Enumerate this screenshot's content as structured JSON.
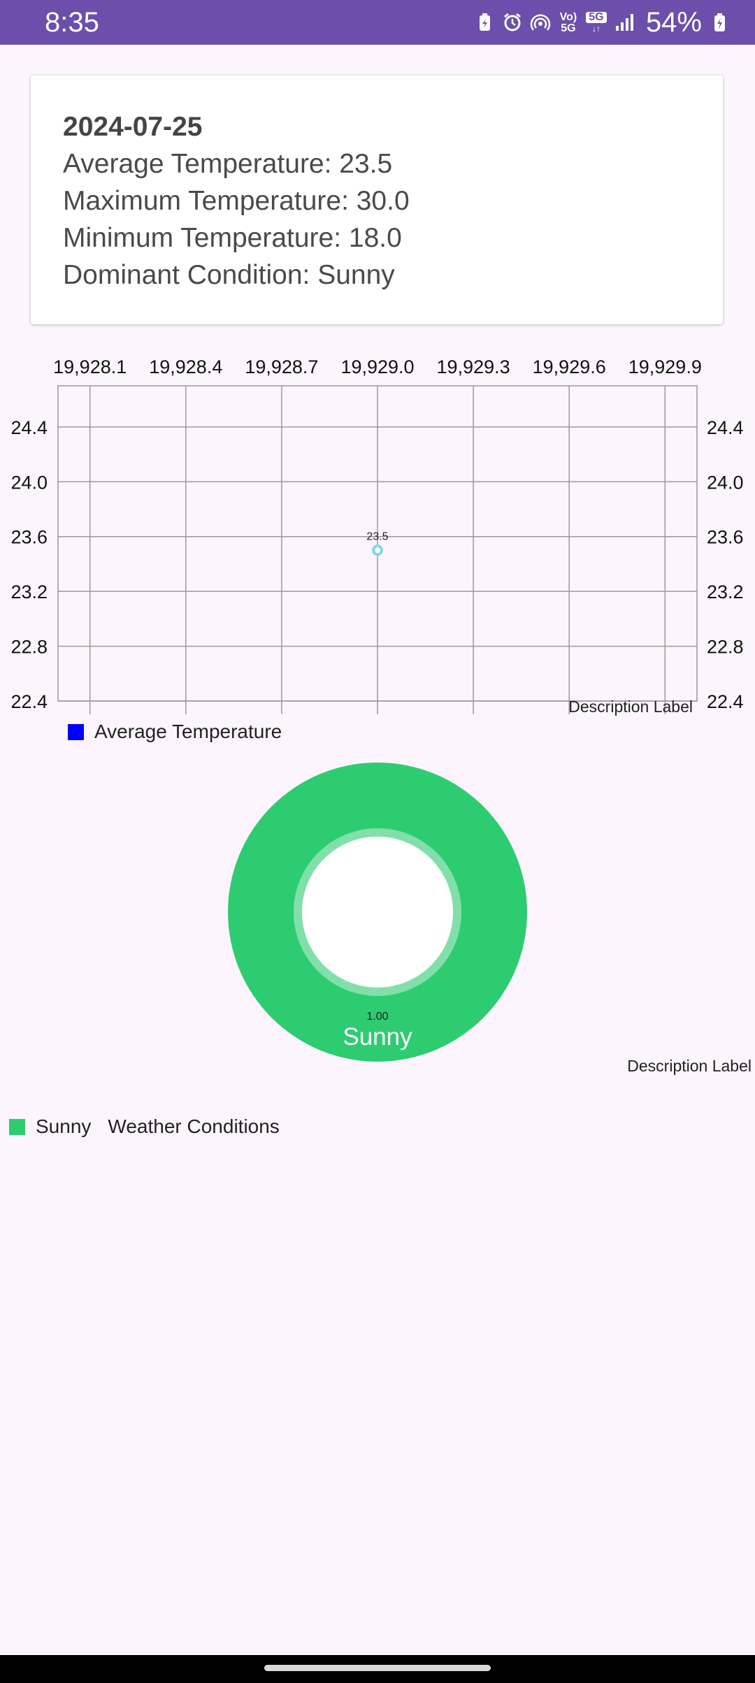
{
  "status_bar": {
    "time": "8:35",
    "battery": "54%",
    "network_top": "Vo)",
    "network_bottom": "5G",
    "badge_5g": "5G",
    "icons": [
      "battery-saver-icon",
      "alarm-icon",
      "hotspot-icon",
      "volte-icon",
      "5g-icon",
      "signal-icon",
      "battery-charging-icon"
    ]
  },
  "summary": {
    "date": "2024-07-25",
    "average": "Average Temperature: 23.5",
    "maximum": "Maximum Temperature: 30.0",
    "minimum": "Minimum Temperature: 18.0",
    "condition": "Dominant Condition: Sunny"
  },
  "chart_data": [
    {
      "type": "line",
      "title": "",
      "x_tick_labels": [
        "19,928.1",
        "19,928.4",
        "19,928.7",
        "19,929.0",
        "19,929.3",
        "19,929.6",
        "19,929.9"
      ],
      "x_ticks": [
        19928.1,
        19928.4,
        19928.7,
        19929.0,
        19929.3,
        19929.6,
        19929.9
      ],
      "y_tick_labels": [
        "24.4",
        "24.0",
        "23.6",
        "23.2",
        "22.8",
        "22.4"
      ],
      "y_ticks": [
        24.4,
        24.0,
        23.6,
        23.2,
        22.8,
        22.4
      ],
      "xlim": [
        19928.0,
        19930.0
      ],
      "ylim": [
        22.4,
        24.7
      ],
      "series": [
        {
          "name": "Average Temperature",
          "x": [
            19929.0
          ],
          "values": [
            23.5
          ],
          "point_labels": [
            "23.5"
          ],
          "color": "#7dd8e8",
          "legend_color": "#0000ff"
        }
      ],
      "legend": "bottom-left",
      "description": "Description Label",
      "grid": true
    },
    {
      "type": "pie",
      "title": "Weather Conditions",
      "categories": [
        "Sunny"
      ],
      "values": [
        1.0
      ],
      "value_labels": [
        "1.00"
      ],
      "colors": [
        "#2ecc71"
      ],
      "hole": true,
      "legend": "bottom-left",
      "description": "Description Label"
    }
  ]
}
